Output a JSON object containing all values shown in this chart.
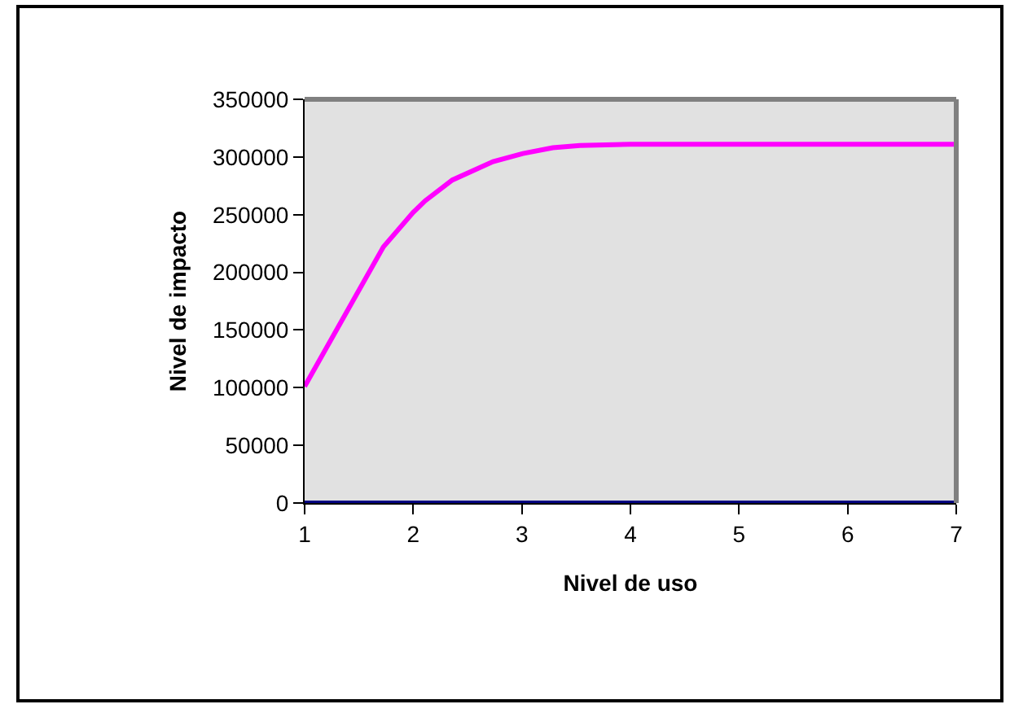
{
  "chart_data": {
    "type": "line",
    "xlabel": "Nivel de uso",
    "ylabel": "Nivel de impacto",
    "xlim": [
      1,
      7
    ],
    "xticks": [
      1,
      2,
      3,
      4,
      5,
      6,
      7
    ],
    "ylim": [
      0,
      350000
    ],
    "yticks": [
      0,
      50000,
      100000,
      150000,
      200000,
      250000,
      300000,
      350000
    ],
    "grid": false,
    "marker": "none",
    "line_style": "solid",
    "series": [
      {
        "color": "#ff00ff",
        "x": [
          1,
          1.725,
          2,
          2.11,
          2.36,
          2.735,
          3.01,
          3.285,
          3.535,
          4,
          5,
          6,
          7
        ],
        "values": [
          101000,
          222000,
          252000,
          262000,
          280000,
          296000,
          303000,
          308000,
          310000,
          311000,
          311000,
          311000,
          311000
        ]
      },
      {
        "color": "#000080",
        "x": [
          1,
          2,
          3,
          4,
          5,
          6,
          7
        ],
        "values": [
          0,
          0,
          0,
          0,
          0,
          0,
          0
        ]
      }
    ]
  }
}
